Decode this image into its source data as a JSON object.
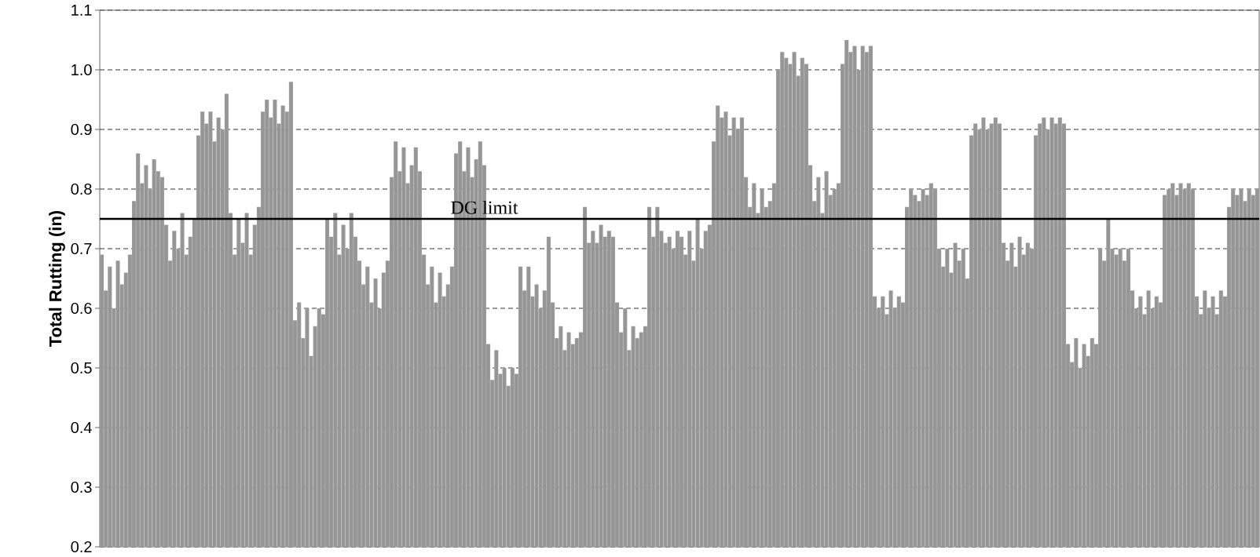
{
  "chart_data": {
    "type": "bar",
    "ylabel": "Total Rutting (in)",
    "color": "#969696",
    "ylim": [
      0.2,
      1.1
    ],
    "yticks": [
      0.2,
      0.3,
      0.4,
      0.5,
      0.6,
      0.7,
      0.8,
      0.9,
      {
        "value": 1.0,
        "label": "1.0"
      },
      1.1
    ],
    "grid": "y",
    "tick_labels": "y",
    "ref_lines": [
      {
        "axis": "y",
        "value": 0.75,
        "label": "DG limit",
        "color": "#000000"
      }
    ],
    "categories": [
      null,
      null,
      null,
      null,
      null,
      null,
      null,
      null,
      null,
      null,
      null,
      null,
      null,
      null,
      null,
      null,
      null,
      null,
      null,
      null,
      null,
      null,
      null,
      null,
      null,
      null,
      null,
      null,
      null,
      null,
      null,
      null,
      null,
      null,
      null,
      null,
      null,
      null,
      null,
      null,
      null,
      null,
      null,
      null,
      null,
      null,
      null,
      null,
      null,
      null,
      null,
      null,
      null,
      null,
      null,
      null,
      null,
      null,
      null,
      null,
      null,
      null,
      null,
      null,
      null,
      null,
      null,
      null,
      null,
      null,
      null,
      null,
      null,
      null,
      null,
      null,
      null,
      null,
      null,
      null,
      null,
      null,
      null,
      null,
      null,
      null,
      null,
      null,
      null,
      null,
      null,
      null,
      null,
      null,
      null,
      null,
      null,
      null,
      null,
      null,
      null,
      null,
      null,
      null,
      null,
      null,
      null,
      null,
      null,
      null,
      null,
      null,
      null,
      null,
      null,
      null,
      null,
      null,
      null,
      null,
      null,
      null,
      null,
      null,
      null,
      null,
      null,
      null,
      null,
      null,
      null,
      null,
      null,
      null,
      null,
      null,
      null,
      null,
      null,
      null,
      null,
      null,
      null,
      null,
      null,
      null,
      null,
      null,
      null,
      null,
      null,
      null,
      null,
      null,
      null,
      null,
      null,
      null,
      null,
      null,
      null,
      null,
      null,
      null,
      null,
      null,
      null,
      null,
      null,
      null,
      null,
      null,
      null,
      null,
      null,
      null,
      null,
      null,
      null,
      null,
      null,
      null,
      null,
      null,
      null,
      null,
      null,
      null,
      null,
      null,
      null,
      null,
      null,
      null,
      null,
      null,
      null,
      null,
      null,
      null,
      null,
      null,
      null,
      null,
      null,
      null,
      null,
      null,
      null,
      null,
      null,
      null,
      null,
      null,
      null,
      null,
      null,
      null,
      null,
      null,
      null,
      null,
      null,
      null,
      null,
      null,
      null,
      null,
      null,
      null,
      null,
      null,
      null,
      null,
      null,
      null,
      null,
      null,
      null,
      null,
      null,
      null,
      null,
      null,
      null,
      null,
      null,
      null,
      null,
      null,
      null,
      null,
      null,
      null,
      null,
      null,
      null,
      null,
      null,
      null,
      null,
      null,
      null,
      null,
      null,
      null,
      null,
      null,
      null,
      null,
      null,
      null,
      null,
      null,
      null,
      null,
      null,
      null,
      null,
      null,
      null,
      null,
      null,
      null,
      null,
      null,
      null,
      null
    ],
    "values": [
      0.69,
      0.63,
      0.67,
      0.6,
      0.68,
      0.64,
      0.66,
      0.69,
      0.78,
      0.86,
      0.81,
      0.84,
      0.8,
      0.85,
      0.83,
      0.82,
      0.74,
      0.68,
      0.73,
      0.7,
      0.76,
      0.69,
      0.72,
      0.75,
      0.89,
      0.93,
      0.91,
      0.93,
      0.88,
      0.92,
      0.9,
      0.96,
      0.76,
      0.69,
      0.75,
      0.71,
      0.76,
      0.69,
      0.74,
      0.77,
      0.93,
      0.95,
      0.92,
      0.95,
      0.91,
      0.94,
      0.93,
      0.98,
      0.58,
      0.61,
      0.55,
      0.6,
      0.52,
      0.57,
      0.6,
      0.59,
      0.75,
      0.72,
      0.76,
      0.69,
      0.74,
      0.7,
      0.76,
      0.72,
      0.68,
      0.64,
      0.67,
      0.61,
      0.65,
      0.6,
      0.66,
      0.68,
      0.82,
      0.88,
      0.83,
      0.87,
      0.81,
      0.84,
      0.87,
      0.83,
      0.69,
      0.64,
      0.67,
      0.61,
      0.66,
      0.62,
      0.64,
      0.67,
      0.86,
      0.88,
      0.83,
      0.87,
      0.82,
      0.85,
      0.88,
      0.84,
      0.54,
      0.48,
      0.53,
      0.49,
      0.5,
      0.47,
      0.5,
      0.49,
      0.67,
      0.63,
      0.67,
      0.62,
      0.64,
      0.6,
      0.63,
      0.72,
      0.61,
      0.55,
      0.57,
      0.53,
      0.56,
      0.54,
      0.55,
      0.56,
      0.77,
      0.71,
      0.73,
      0.71,
      0.74,
      0.72,
      0.73,
      0.72,
      0.61,
      0.56,
      0.6,
      0.53,
      0.57,
      0.55,
      0.56,
      0.57,
      0.77,
      0.72,
      0.77,
      0.73,
      0.71,
      0.72,
      0.7,
      0.73,
      0.72,
      0.69,
      0.73,
      0.68,
      0.75,
      0.7,
      0.73,
      0.74,
      0.88,
      0.94,
      0.92,
      0.93,
      0.89,
      0.92,
      0.9,
      0.92,
      0.82,
      0.77,
      0.81,
      0.76,
      0.8,
      0.77,
      0.78,
      0.81,
      1.0,
      1.03,
      1.02,
      1.01,
      1.03,
      0.99,
      1.02,
      1.01,
      0.84,
      0.78,
      0.82,
      0.76,
      0.83,
      0.79,
      0.8,
      0.81,
      1.01,
      1.05,
      1.03,
      1.04,
      1.0,
      1.04,
      1.03,
      1.04,
      0.62,
      0.6,
      0.62,
      0.59,
      0.63,
      0.6,
      0.62,
      0.61,
      0.77,
      0.8,
      0.79,
      0.78,
      0.8,
      0.79,
      0.81,
      0.8,
      0.7,
      0.67,
      0.7,
      0.66,
      0.71,
      0.68,
      0.7,
      0.65,
      0.89,
      0.91,
      0.9,
      0.92,
      0.9,
      0.91,
      0.92,
      0.91,
      0.71,
      0.68,
      0.71,
      0.67,
      0.72,
      0.69,
      0.71,
      0.7,
      0.89,
      0.91,
      0.92,
      0.9,
      0.92,
      0.91,
      0.92,
      0.91,
      0.54,
      0.51,
      0.55,
      0.5,
      0.54,
      0.52,
      0.55,
      0.54,
      0.7,
      0.68,
      0.75,
      0.7,
      0.69,
      0.7,
      0.68,
      0.7,
      0.63,
      0.6,
      0.62,
      0.59,
      0.63,
      0.6,
      0.62,
      0.61,
      0.79,
      0.8,
      0.81,
      0.79,
      0.81,
      0.8,
      0.81,
      0.8,
      0.62,
      0.59,
      0.63,
      0.6,
      0.62,
      0.59,
      0.63,
      0.62,
      0.77,
      0.8,
      0.79,
      0.8,
      0.78,
      0.8,
      0.79,
      0.8
    ]
  }
}
